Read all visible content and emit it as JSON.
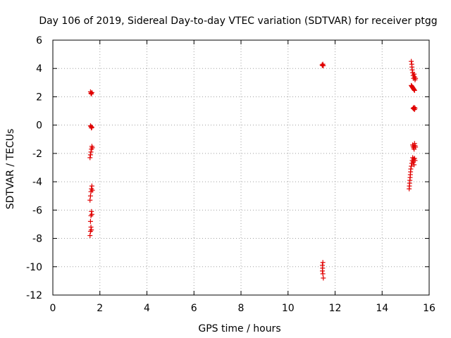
{
  "chart_data": {
    "type": "scatter",
    "title": "Day 106 of 2019, Sidereal Day-to-day VTEC variation (SDTVAR) for receiver ptgg",
    "xlabel": "GPS time / hours",
    "ylabel": "SDTVAR / TECUs",
    "xlim": [
      0,
      16
    ],
    "ylim": [
      -12,
      6
    ],
    "xticks": [
      0,
      2,
      4,
      6,
      8,
      10,
      12,
      14,
      16
    ],
    "yticks": [
      -12,
      -10,
      -8,
      -6,
      -4,
      -2,
      0,
      2,
      4,
      6
    ],
    "grid": true,
    "legend": "none",
    "marker": "plus",
    "color": "#e00000",
    "series": [
      {
        "x": [
          1.6,
          1.62,
          1.64,
          1.66,
          1.6,
          1.62,
          1.64,
          1.66,
          1.58,
          1.6,
          1.62,
          1.64,
          1.66,
          1.68,
          1.58,
          1.6,
          1.62,
          1.64,
          1.66,
          1.68,
          1.6,
          1.62,
          1.64,
          1.66,
          1.58,
          1.6,
          1.62,
          1.64,
          11.45,
          11.47,
          11.48,
          11.5,
          11.48,
          11.46,
          11.47,
          11.46,
          11.48,
          11.5,
          15.24,
          15.26,
          15.27,
          15.28,
          15.3,
          15.32,
          15.34,
          15.36,
          15.38,
          15.4,
          15.42,
          15.24,
          15.26,
          15.28,
          15.3,
          15.32,
          15.34,
          15.36,
          15.38,
          15.32,
          15.34,
          15.36,
          15.38,
          15.4,
          15.3,
          15.32,
          15.34,
          15.36,
          15.38,
          15.4,
          15.42,
          15.15,
          15.16,
          15.17,
          15.18,
          15.19,
          15.2,
          15.21,
          15.22,
          15.24,
          15.26,
          15.28,
          15.3,
          15.32,
          15.34,
          15.36,
          15.38,
          15.4
        ],
        "y": [
          2.35,
          2.25,
          2.2,
          2.3,
          -0.05,
          -0.1,
          -0.2,
          -0.15,
          -2.3,
          -2.1,
          -1.9,
          -1.7,
          -1.5,
          -1.6,
          -5.3,
          -5.0,
          -4.7,
          -4.5,
          -4.3,
          -4.6,
          -6.8,
          -6.4,
          -6.1,
          -6.3,
          -7.8,
          -7.5,
          -7.2,
          -7.4,
          4.25,
          4.2,
          4.3,
          4.2,
          -9.7,
          -9.9,
          -10.1,
          -10.3,
          -10.5,
          -10.8,
          4.5,
          4.3,
          4.1,
          3.9,
          3.7,
          3.5,
          3.3,
          3.6,
          3.4,
          3.2,
          3.3,
          2.8,
          2.75,
          2.7,
          2.65,
          2.6,
          2.55,
          2.5,
          2.45,
          1.2,
          1.15,
          1.25,
          1.1,
          1.2,
          -1.4,
          -1.5,
          -1.6,
          -1.7,
          -1.3,
          -1.45,
          -1.55,
          -4.5,
          -4.3,
          -4.1,
          -3.9,
          -3.7,
          -3.5,
          -3.3,
          -3.1,
          -2.9,
          -2.7,
          -2.5,
          -2.3,
          -2.6,
          -2.4,
          -2.8,
          -2.35,
          -2.5
        ]
      }
    ]
  }
}
